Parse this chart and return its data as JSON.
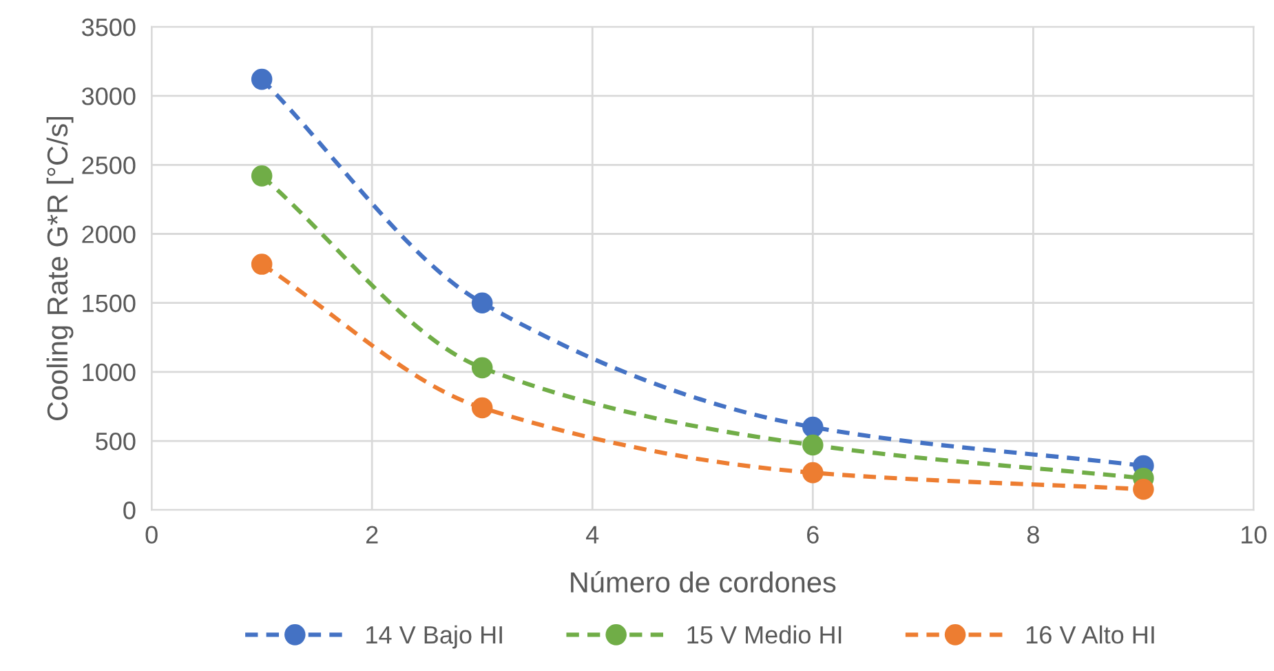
{
  "chart_data": {
    "type": "line",
    "xlabel": "Número de cordones",
    "ylabel": "Cooling Rate G*R [°C/s]",
    "x": [
      1,
      3,
      6,
      9
    ],
    "series": [
      {
        "name": "14 V Bajo HI",
        "color": "#4472c4",
        "values": [
          3120,
          1500,
          600,
          320
        ]
      },
      {
        "name": "15 V Medio HI",
        "color": "#70ad47",
        "values": [
          2420,
          1030,
          470,
          230
        ]
      },
      {
        "name": "16 V Alto HI",
        "color": "#ed7d31",
        "values": [
          1780,
          740,
          270,
          150
        ]
      }
    ],
    "xlim": [
      0,
      10
    ],
    "xticks": [
      0,
      2,
      4,
      6,
      8,
      10
    ],
    "ylim": [
      0,
      3500
    ],
    "yticks": [
      0,
      500,
      1000,
      1500,
      2000,
      2500,
      3000,
      3500
    ],
    "grid": true,
    "legend": "bottom",
    "marker": "circle",
    "line_style": "dashed"
  }
}
